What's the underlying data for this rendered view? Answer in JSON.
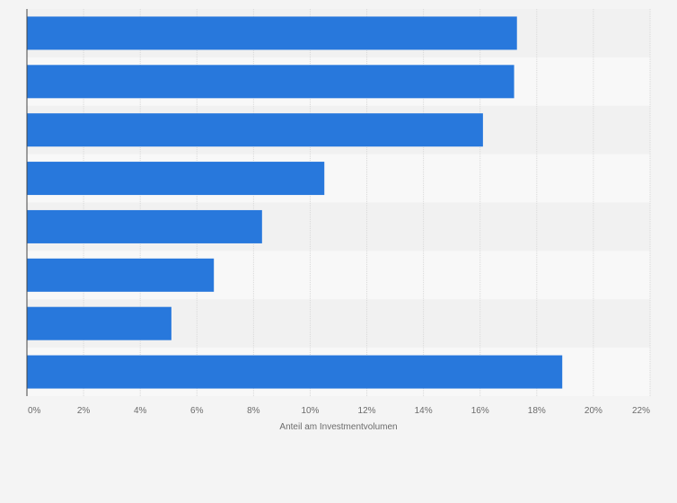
{
  "chart_data": {
    "type": "bar",
    "orientation": "horizontal",
    "categories": [
      "",
      "",
      "",
      "",
      "",
      "",
      "",
      ""
    ],
    "values": [
      17.3,
      17.2,
      16.1,
      10.5,
      8.3,
      6.6,
      5.1,
      18.9
    ],
    "x_ticks": [
      "0%",
      "2%",
      "4%",
      "6%",
      "8%",
      "10%",
      "12%",
      "14%",
      "16%",
      "18%",
      "20%",
      "22%"
    ],
    "xlim": [
      0,
      22
    ],
    "xlabel": "Anteil am Investmentvolumen",
    "ylabel": "",
    "title": "",
    "grid": "vertical",
    "legend": "none",
    "colors": {
      "bar": "#2878dc",
      "band_dark": "#f1f1f1",
      "band_light": "#f8f8f8",
      "grid": "#d9d9d9",
      "axis": "#444444",
      "background": "#f4f4f4"
    }
  }
}
